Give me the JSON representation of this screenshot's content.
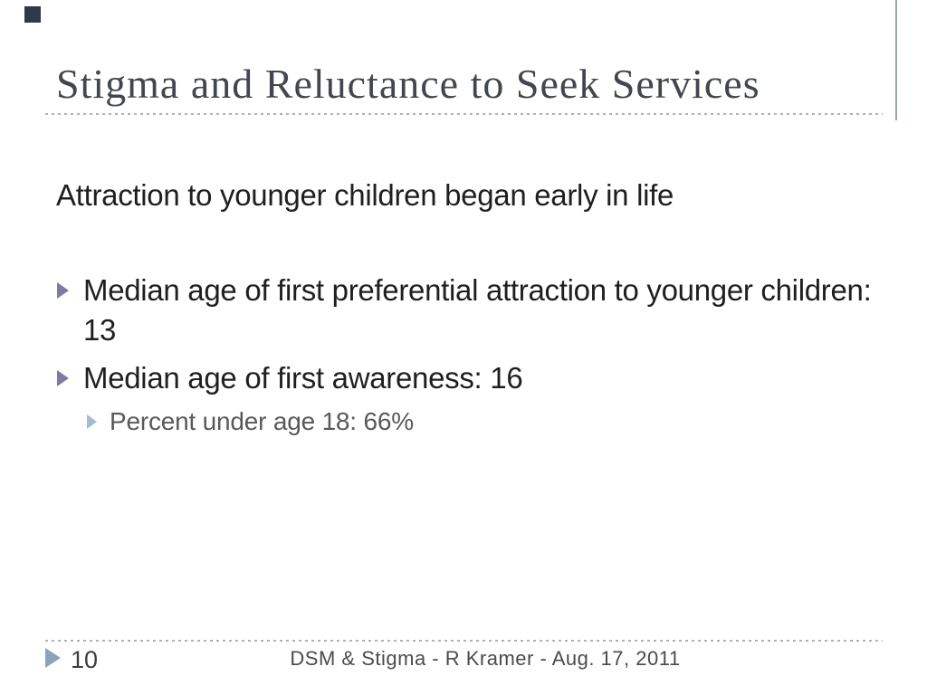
{
  "slide": {
    "title": "Stigma and Reluctance to Seek Services",
    "intro": "Attraction to younger children began early in life",
    "bullets": [
      {
        "level": 1,
        "text": "Median age of first preferential attraction to younger children: 13"
      },
      {
        "level": 1,
        "text": "Median age of first awareness: 16"
      },
      {
        "level": 2,
        "text": "Percent under age 18: 66%"
      }
    ],
    "footer": {
      "page_number": "10",
      "text": "DSM & Stigma - R Kramer - Aug. 17, 2011"
    },
    "icons": {
      "bullet_level1": "right-triangle-icon",
      "bullet_level2": "right-triangle-icon",
      "footer_marker": "right-triangle-icon",
      "corner_decoration": "square-icon"
    },
    "colors": {
      "title_text": "#42464f",
      "body_text": "#1f1f1f",
      "muted_text": "#595959",
      "footer_text": "#4b4b4b",
      "bullet_triangle": "#7b7ba3",
      "sub_bullet_triangle": "#a3bcd1",
      "footer_triangle": "#8ba4bd",
      "dotted_rule": "#b1b1b1",
      "corner_square": "#2e3a4a",
      "right_rule": "#9aa4b0",
      "background": "#ffffff"
    }
  }
}
